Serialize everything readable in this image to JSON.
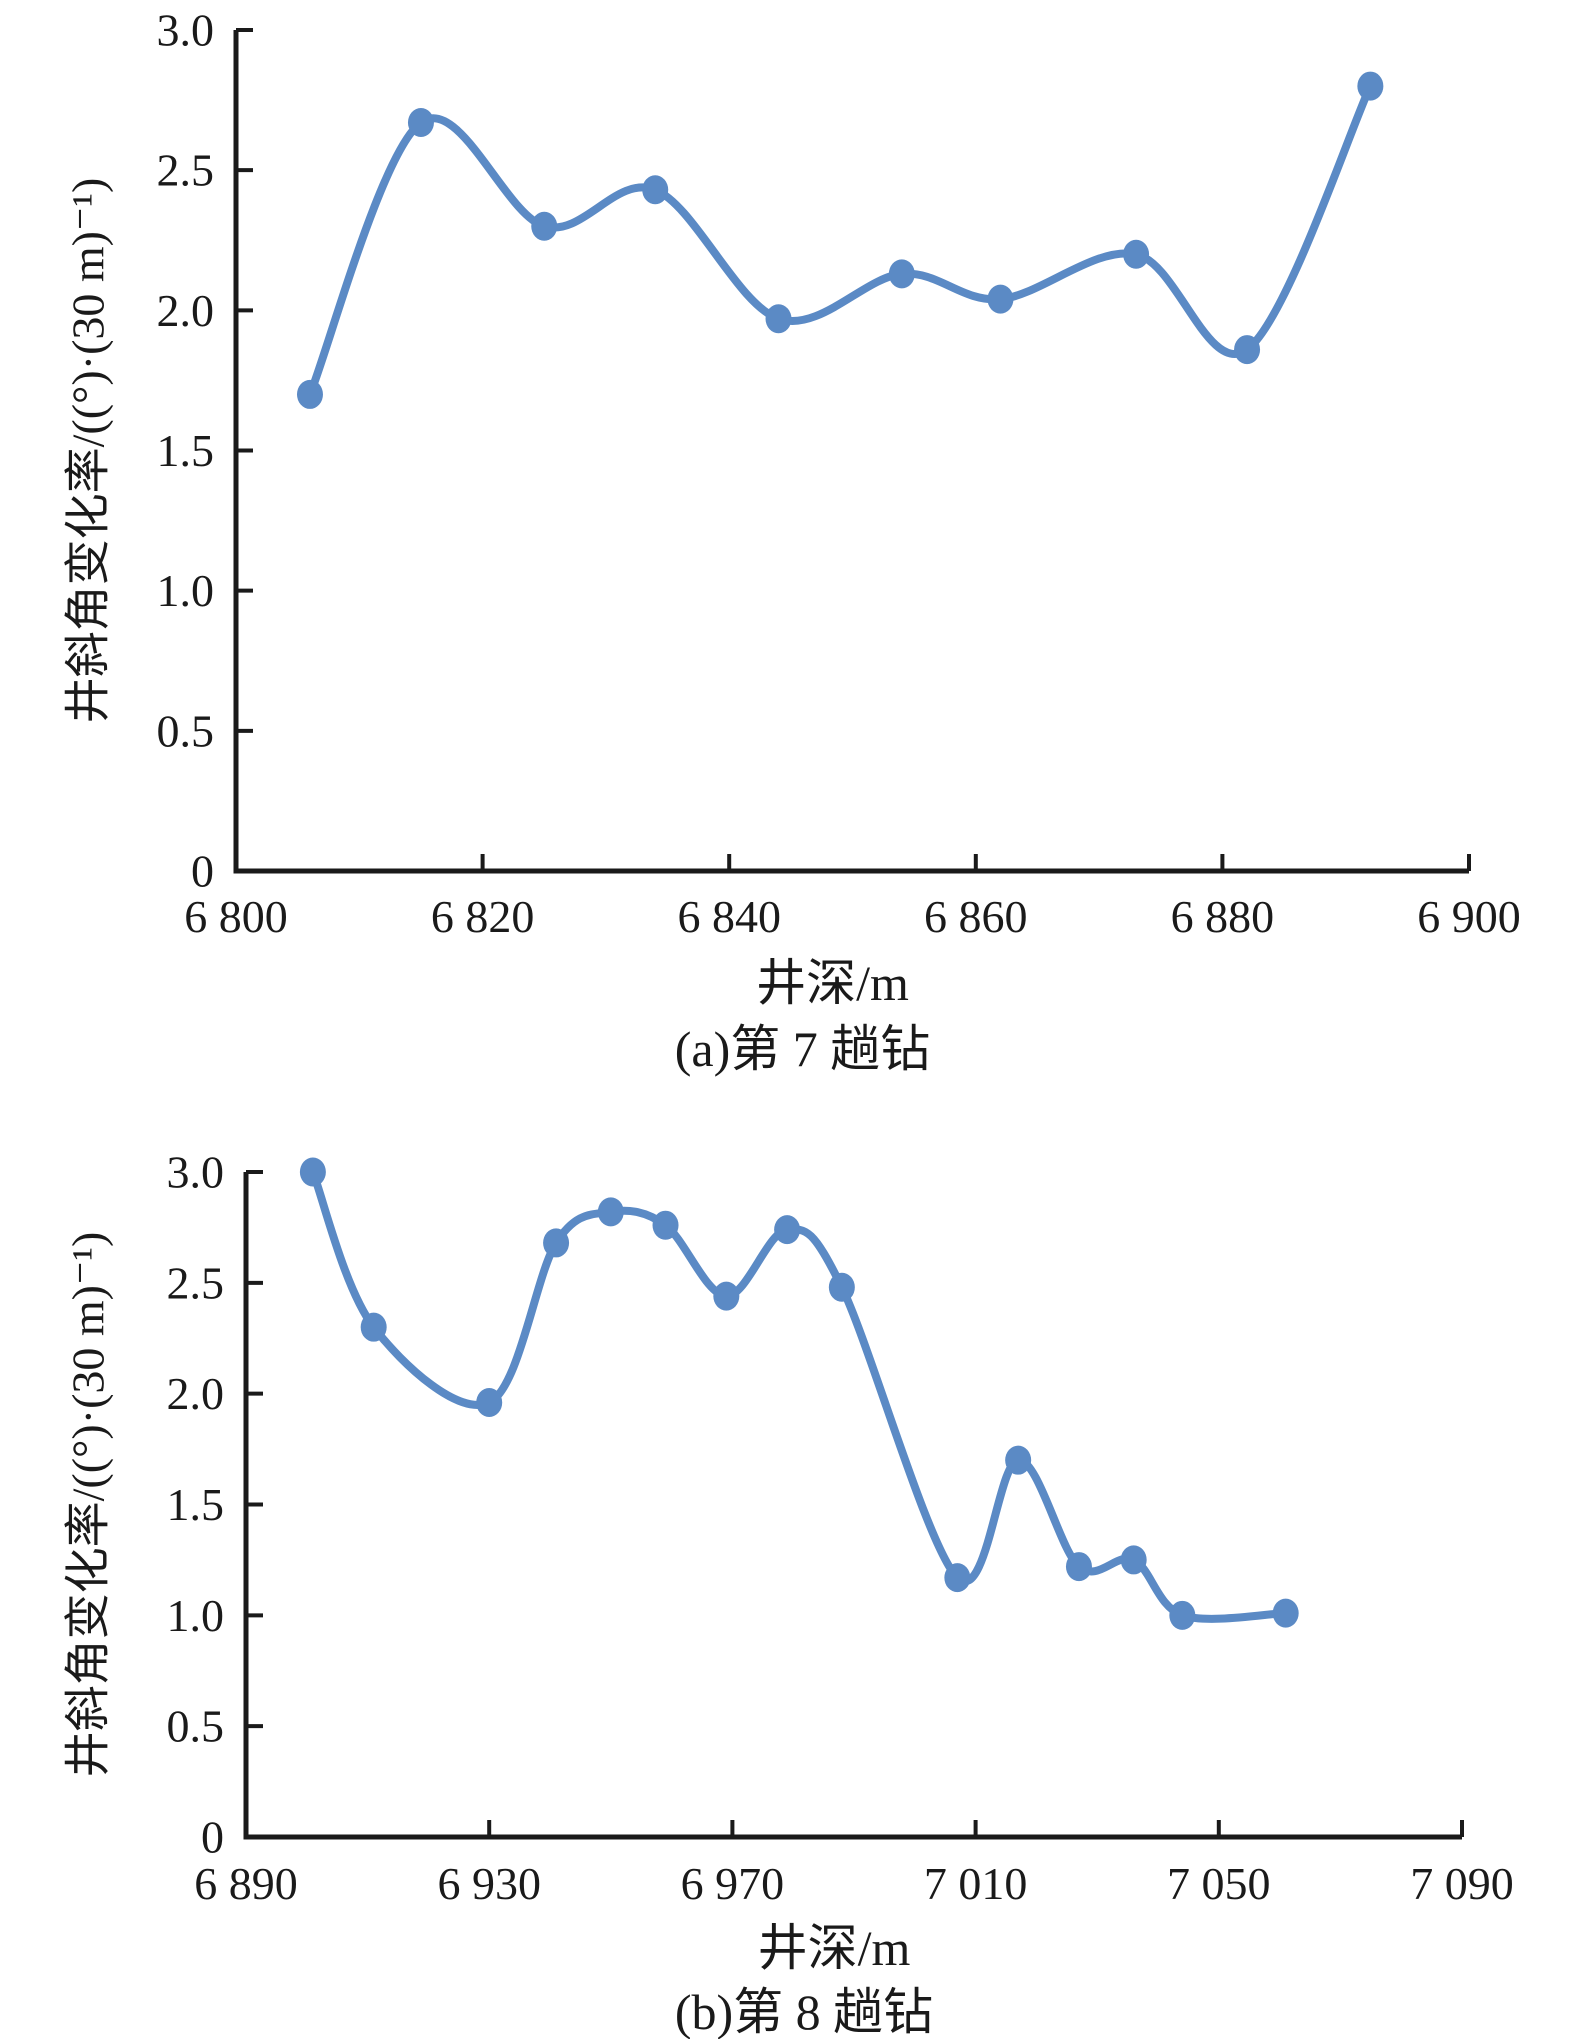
{
  "page": {
    "background": "#ffffff",
    "text_color": "#1a1a1a",
    "accent_color": "#5b8ac5"
  },
  "chart_data": [
    {
      "type": "line",
      "caption": "(a)第 7 趟钻",
      "xlabel": "井深/m",
      "ylabel": "井斜角变化率/((°)·(30 m)⁻¹)",
      "smooth": true,
      "marker": "circle",
      "grid": false,
      "legend": null,
      "line_color": "#5b8ac5",
      "xlim": [
        6800,
        6900
      ],
      "ylim": [
        0,
        3.0
      ],
      "xticks": [
        6800,
        6820,
        6840,
        6860,
        6880,
        6900
      ],
      "xtick_labels": [
        "6 800",
        "6 820",
        "6 840",
        "6 860",
        "6 880",
        "6 900"
      ],
      "yticks": [
        0,
        0.5,
        1.0,
        1.5,
        2.0,
        2.5,
        3.0
      ],
      "ytick_labels": [
        "0",
        "0.5",
        "1.0",
        "1.5",
        "2.0",
        "2.5",
        "3.0"
      ],
      "x": [
        6806,
        6815,
        6825,
        6834,
        6844,
        6854,
        6862,
        6873,
        6882,
        6892
      ],
      "y": [
        1.7,
        2.67,
        2.3,
        2.43,
        1.97,
        2.13,
        2.04,
        2.2,
        1.86,
        2.8
      ]
    },
    {
      "type": "line",
      "caption": "(b)第 8 趟钻",
      "xlabel": "井深/m",
      "ylabel": "井斜角变化率/((°)·(30 m)⁻¹)",
      "smooth": true,
      "marker": "circle",
      "grid": false,
      "legend": null,
      "line_color": "#5b8ac5",
      "xlim": [
        6890,
        7090
      ],
      "ylim": [
        0,
        3.0
      ],
      "xticks": [
        6890,
        6930,
        6970,
        7010,
        7050,
        7090
      ],
      "xtick_labels": [
        "6 890",
        "6 930",
        "6 970",
        "7 010",
        "7 050",
        "7 090"
      ],
      "yticks": [
        0,
        0.5,
        1.0,
        1.5,
        2.0,
        2.5,
        3.0
      ],
      "ytick_labels": [
        "0",
        "0.5",
        "1.0",
        "1.5",
        "2.0",
        "2.5",
        "3.0"
      ],
      "x": [
        6901,
        6911,
        6930,
        6941,
        6950,
        6959,
        6969,
        6979,
        6988,
        7007,
        7017,
        7027,
        7036,
        7044,
        7061
      ],
      "y": [
        3.0,
        2.3,
        1.96,
        2.68,
        2.82,
        2.76,
        2.44,
        2.74,
        2.48,
        1.17,
        1.7,
        1.22,
        1.25,
        1.0,
        1.01
      ]
    }
  ]
}
